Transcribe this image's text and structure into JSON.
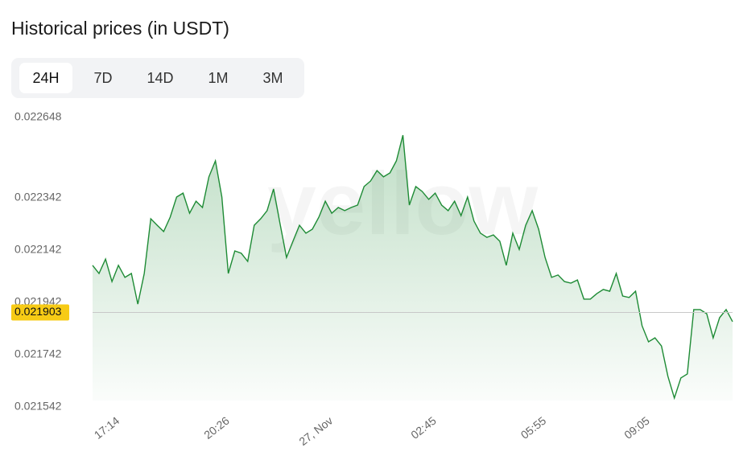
{
  "header": {
    "title": "Historical prices (in USDT)"
  },
  "tabs": [
    "24H",
    "7D",
    "14D",
    "1M",
    "3M"
  ],
  "active_tab": 0,
  "chart_data": {
    "type": "area",
    "watermark": "yellow",
    "color": "#1e8b35",
    "values": [
      0.022083,
      0.022052,
      0.022107,
      0.022021,
      0.022083,
      0.022037,
      0.022052,
      0.021935,
      0.022052,
      0.022261,
      0.022236,
      0.022212,
      0.022267,
      0.022344,
      0.022359,
      0.022282,
      0.022328,
      0.022304,
      0.022421,
      0.022482,
      0.022344,
      0.022052,
      0.022138,
      0.022129,
      0.022098,
      0.022236,
      0.022261,
      0.022292,
      0.022375,
      0.022242,
      0.022113,
      0.022175,
      0.022236,
      0.022206,
      0.022221,
      0.022267,
      0.022328,
      0.022282,
      0.022304,
      0.022292,
      0.022304,
      0.022313,
      0.022384,
      0.022405,
      0.022445,
      0.022421,
      0.022436,
      0.022482,
      0.02258,
      0.022313,
      0.022384,
      0.022365,
      0.022335,
      0.022359,
      0.022313,
      0.022292,
      0.022328,
      0.022273,
      0.022344,
      0.022252,
      0.022206,
      0.02219,
      0.022199,
      0.022175,
      0.022083,
      0.022206,
      0.022144,
      0.022236,
      0.022292,
      0.022221,
      0.022113,
      0.022037,
      0.022046,
      0.022021,
      0.022015,
      0.022027,
      0.021954,
      0.021954,
      0.021975,
      0.021991,
      0.021984,
      0.022052,
      0.021966,
      0.02196,
      0.021984,
      0.021852,
      0.021791,
      0.021806,
      0.021775,
      0.021659,
      0.021576,
      0.021653,
      0.021668,
      0.021914,
      0.021914,
      0.021898,
      0.021806,
      0.021883,
      0.021914,
      0.021868
    ],
    "xticks": [
      {
        "value": 4,
        "label": "17:14"
      },
      {
        "value": 21,
        "label": "20:26"
      },
      {
        "value": 37,
        "label": "27, Nov"
      },
      {
        "value": 53,
        "label": "02:45"
      },
      {
        "value": 70,
        "label": "05:55"
      },
      {
        "value": 86,
        "label": "09:05"
      }
    ],
    "ylim": [
      0.021542,
      0.022648
    ],
    "yticks": [
      0.022648,
      0.022342,
      0.022142,
      0.021942,
      0.021742,
      0.021542
    ],
    "current_value": 0.021903,
    "grid": false
  }
}
